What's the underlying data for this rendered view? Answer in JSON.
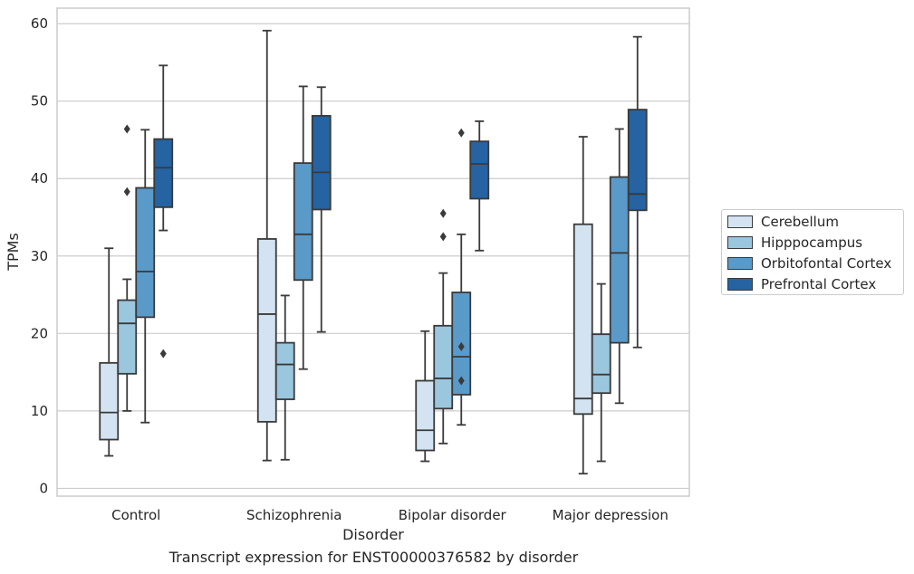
{
  "chart_data": {
    "type": "box",
    "title": "",
    "caption": "Transcript expression for ENST00000376582 by disorder",
    "xlabel": "Disorder",
    "ylabel": "TPMs",
    "ylim": [
      -1,
      62
    ],
    "yticks": [
      0,
      10,
      20,
      30,
      40,
      50,
      60
    ],
    "grid": "horizontal",
    "legend_position": "right",
    "categories": [
      "Control",
      "Schizophrenia",
      "Bipolar disorder",
      "Major depression"
    ],
    "series": [
      {
        "name": "Cerebellum",
        "color": "#d3e3f2",
        "boxes": [
          {
            "min": 4.2,
            "q1": 6.3,
            "median": 9.8,
            "q3": 16.2,
            "max": 31.0,
            "outliers": []
          },
          {
            "min": 3.6,
            "q1": 8.6,
            "median": 22.5,
            "q3": 32.2,
            "max": 59.1,
            "outliers": []
          },
          {
            "min": 3.5,
            "q1": 4.9,
            "median": 7.5,
            "q3": 13.9,
            "max": 20.3,
            "outliers": []
          },
          {
            "min": 1.9,
            "q1": 9.6,
            "median": 11.6,
            "q3": 34.1,
            "max": 45.4,
            "outliers": []
          }
        ]
      },
      {
        "name": "Hipppocampus",
        "color": "#9ac6de",
        "boxes": [
          {
            "min": 10.0,
            "q1": 14.8,
            "median": 21.3,
            "q3": 24.3,
            "max": 27.0,
            "outliers": [
              38.3,
              46.4
            ]
          },
          {
            "min": 3.7,
            "q1": 11.5,
            "median": 16.0,
            "q3": 18.8,
            "max": 24.9,
            "outliers": []
          },
          {
            "min": 5.8,
            "q1": 10.3,
            "median": 14.2,
            "q3": 21.0,
            "max": 27.8,
            "outliers": [
              32.5,
              35.5
            ]
          },
          {
            "min": 3.5,
            "q1": 12.3,
            "median": 14.7,
            "q3": 19.9,
            "max": 26.4,
            "outliers": []
          }
        ]
      },
      {
        "name": "Orbitofontal Cortex",
        "color": "#5a9ac8",
        "boxes": [
          {
            "min": 8.5,
            "q1": 22.1,
            "median": 28.0,
            "q3": 38.8,
            "max": 46.3,
            "outliers": []
          },
          {
            "min": 15.4,
            "q1": 26.9,
            "median": 32.8,
            "q3": 42.0,
            "max": 51.9,
            "outliers": []
          },
          {
            "min": 8.2,
            "q1": 12.1,
            "median": 17.0,
            "q3": 25.3,
            "max": 32.8,
            "outliers": [
              13.9,
              18.3,
              45.9
            ]
          },
          {
            "min": 11.0,
            "q1": 18.8,
            "median": 30.4,
            "q3": 40.2,
            "max": 46.4,
            "outliers": []
          }
        ]
      },
      {
        "name": "Prefrontal Cortex",
        "color": "#2563a2",
        "boxes": [
          {
            "min": 33.3,
            "q1": 36.3,
            "median": 41.4,
            "q3": 45.1,
            "max": 54.6,
            "outliers": [
              17.4
            ]
          },
          {
            "min": 20.2,
            "q1": 36.0,
            "median": 40.8,
            "q3": 48.1,
            "max": 51.8,
            "outliers": []
          },
          {
            "min": 30.7,
            "q1": 37.4,
            "median": 41.9,
            "q3": 44.8,
            "max": 47.4,
            "outliers": []
          },
          {
            "min": 18.2,
            "q1": 35.9,
            "median": 38.0,
            "q3": 48.9,
            "max": 58.3,
            "outliers": []
          }
        ]
      }
    ]
  },
  "style": {
    "grid_color": "#cccccc",
    "frame_color": "#cccccc",
    "line_color": "#3a3a3a"
  }
}
